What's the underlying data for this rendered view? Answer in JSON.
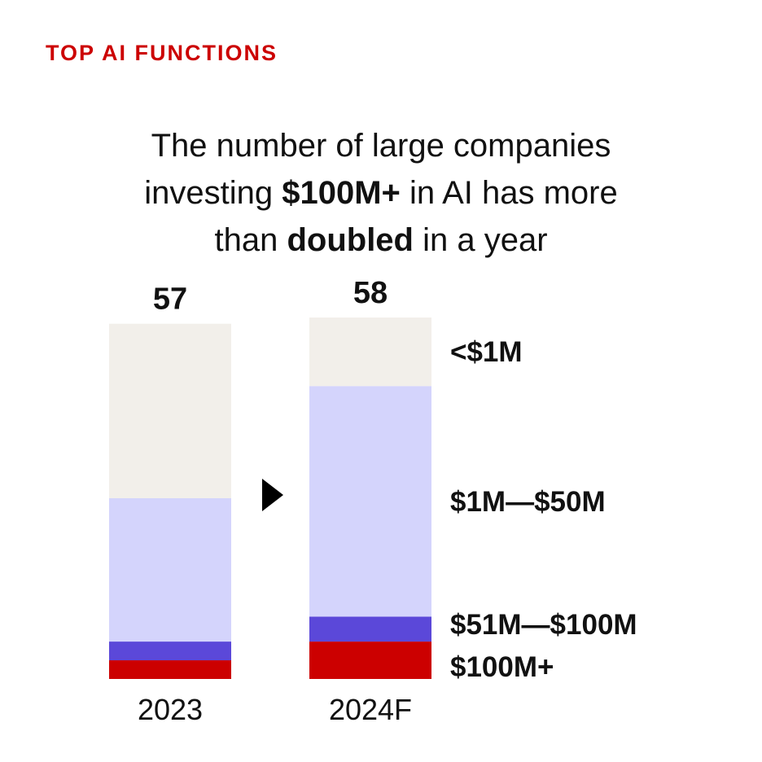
{
  "kicker": "TOP AI FUNCTIONS",
  "headline": {
    "line1": "The number of large companies",
    "line2_pre": "investing ",
    "line2_bold": "$100M+",
    "line2_post": " in AI has more",
    "line3_pre": "than ",
    "line3_bold": "doubled",
    "line3_post": " in a year"
  },
  "arrow_icon": "triangle-right-icon",
  "chart_data": {
    "type": "bar",
    "stacked": true,
    "categories": [
      "2023",
      "2024F"
    ],
    "totals": [
      57,
      58
    ],
    "series": [
      {
        "name": "$100M+",
        "color": "#cc0000",
        "values": [
          3,
          6
        ]
      },
      {
        "name": "$51M—$100M",
        "color": "#5b48d9",
        "values": [
          3,
          4
        ]
      },
      {
        "name": "$1M—$50M",
        "color": "#d4d4fc",
        "values": [
          23,
          37
        ]
      },
      {
        "name": "<$1M",
        "color": "#f2efea",
        "values": [
          28,
          11
        ]
      }
    ],
    "ylim": [
      0,
      58
    ]
  }
}
